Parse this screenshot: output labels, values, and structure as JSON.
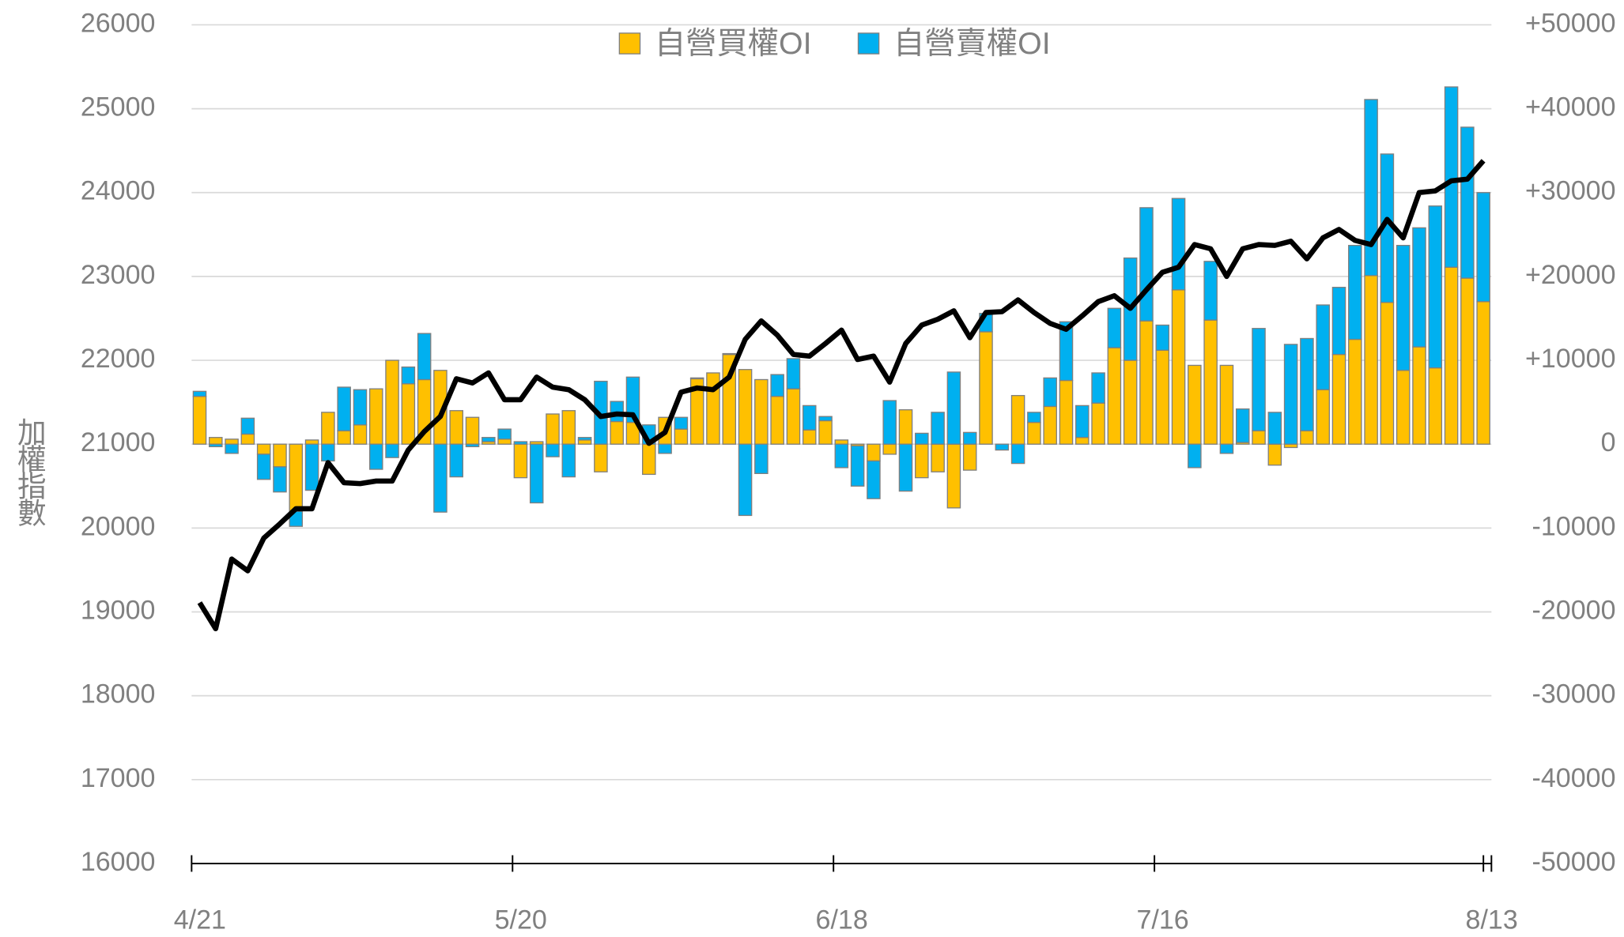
{
  "chart_data": {
    "type": "bar",
    "ylabel": "加權指數",
    "categories": [
      "4/21",
      null,
      null,
      null,
      null,
      null,
      null,
      null,
      null,
      null,
      null,
      null,
      null,
      null,
      null,
      null,
      null,
      null,
      null,
      null,
      "5/20",
      null,
      null,
      null,
      null,
      null,
      null,
      null,
      null,
      null,
      null,
      null,
      null,
      null,
      null,
      null,
      null,
      null,
      null,
      null,
      "6/18",
      null,
      null,
      null,
      null,
      null,
      null,
      null,
      null,
      null,
      null,
      null,
      null,
      null,
      null,
      null,
      null,
      null,
      null,
      null,
      "7/16",
      null,
      null,
      null,
      null,
      null,
      null,
      null,
      null,
      null,
      null,
      null,
      null,
      null,
      null,
      null,
      null,
      null,
      null,
      null,
      "8/13"
    ],
    "series": [
      {
        "name": "自營買權OI",
        "type": "bar",
        "axis": "y2",
        "color": "#FFC000",
        "values": [
          5700,
          800,
          600,
          1200,
          -1200,
          -2700,
          -8000,
          500,
          3800,
          1600,
          2300,
          6600,
          10000,
          7200,
          7700,
          8800,
          4000,
          3200,
          300,
          600,
          -4000,
          300,
          3600,
          4000,
          500,
          -3300,
          2700,
          2600,
          -3600,
          3200,
          1800,
          7800,
          8500,
          10700,
          8900,
          7700,
          5700,
          6600,
          1700,
          2800,
          500,
          -200,
          -2000,
          -1200,
          4100,
          -4000,
          -3300,
          -7600,
          -3100,
          13400,
          0,
          5800,
          2600,
          4500,
          7600,
          800,
          4900,
          11500,
          10000,
          14700,
          11200,
          18400,
          9400,
          14800,
          9400,
          200,
          1600,
          -2500,
          -400,
          1600,
          6500,
          10700,
          12500,
          20100,
          16900,
          8800,
          11600,
          9100,
          21100,
          19800,
          17000
        ]
      },
      {
        "name": "自營賣權OI",
        "type": "bar",
        "axis": "y2",
        "color": "#00B0F0",
        "values": [
          600,
          -300,
          -1100,
          1900,
          -3000,
          -3000,
          -1800,
          -5500,
          -2000,
          5200,
          4200,
          -3000,
          -1600,
          2000,
          5500,
          -8100,
          -3900,
          -300,
          500,
          1200,
          300,
          -7000,
          -1500,
          -3900,
          300,
          7500,
          2400,
          5400,
          2300,
          -1100,
          1400,
          100,
          0,
          100,
          -8500,
          -3500,
          2600,
          3600,
          2900,
          500,
          -2800,
          -4800,
          -4500,
          5200,
          -5600,
          1300,
          3800,
          8600,
          1400,
          2200,
          -700,
          -2300,
          1200,
          3400,
          7000,
          3800,
          3600,
          4700,
          12200,
          13500,
          3000,
          10900,
          -2800,
          7000,
          -1100,
          4000,
          12200,
          3800,
          11900,
          11000,
          10100,
          8000,
          11200,
          21000,
          17700,
          14900,
          14200,
          19300,
          21500,
          18000,
          13000
        ]
      },
      {
        "type": "line",
        "axis": "y",
        "color": "#000000",
        "values": [
          19110,
          18800,
          19630,
          19490,
          19880,
          20050,
          20230,
          20230,
          20780,
          20540,
          20530,
          20560,
          20560,
          20930,
          21150,
          21330,
          21780,
          21730,
          21850,
          21530,
          21530,
          21800,
          21680,
          21650,
          21530,
          21330,
          21360,
          21350,
          21010,
          21140,
          21620,
          21670,
          21650,
          21800,
          22250,
          22470,
          22300,
          22070,
          22050,
          22200,
          22360,
          22010,
          22050,
          21740,
          22200,
          22420,
          22490,
          22590,
          22270,
          22570,
          22580,
          22720,
          22570,
          22440,
          22370,
          22530,
          22700,
          22770,
          22620,
          22840,
          23050,
          23110,
          23380,
          23330,
          23000,
          23330,
          23380,
          23370,
          23420,
          23210,
          23460,
          23560,
          23430,
          23380,
          23680,
          23460,
          24000,
          24020,
          24140,
          24160,
          24380
        ]
      }
    ],
    "ylim": [
      16000,
      26000
    ],
    "yticks": [
      16000,
      17000,
      18000,
      19000,
      20000,
      21000,
      22000,
      23000,
      24000,
      25000,
      26000
    ],
    "y2lim": [
      -50000,
      50000
    ],
    "y2ticks": [
      -50000,
      -40000,
      -30000,
      -20000,
      -10000,
      0,
      {
        "value": 10000,
        "label": "+10000"
      },
      {
        "value": 20000,
        "label": "+20000"
      },
      {
        "value": 30000,
        "label": "+30000"
      },
      {
        "value": 40000,
        "label": "+40000"
      },
      {
        "value": 50000,
        "label": "+50000"
      }
    ],
    "grid": true,
    "legend": "top"
  }
}
